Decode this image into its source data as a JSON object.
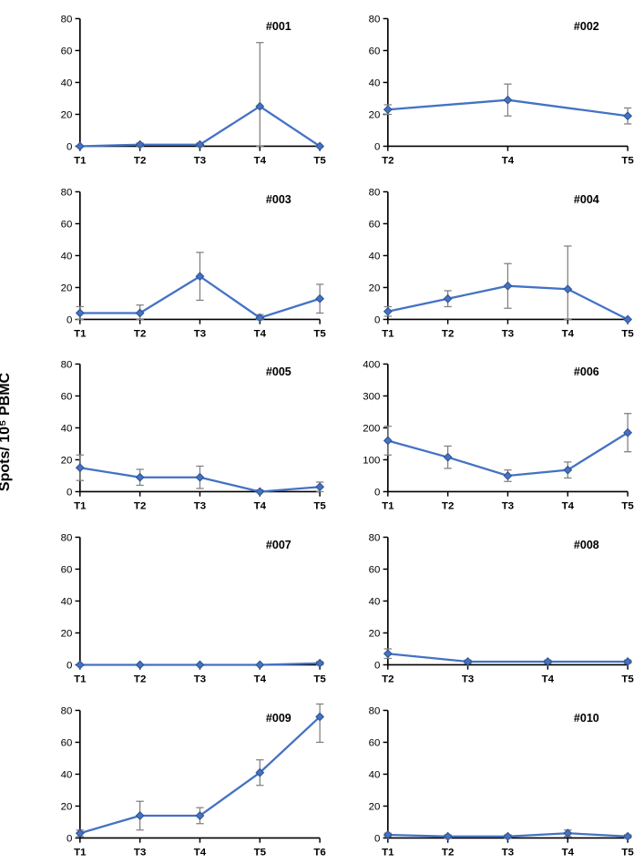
{
  "axis_label": "Spots/ 10⁵ PBMC",
  "style": {
    "background_color": "#ffffff",
    "line_color": "#4472c4",
    "marker_color": "#4472c4",
    "marker_edge": "#2f528f",
    "error_color": "#808080",
    "axis_color": "#000000",
    "line_width": 2.2,
    "marker_size": 4,
    "marker_shape": "diamond",
    "title_fontsize": 12,
    "tick_fontsize": 11,
    "tick_fontweight": "bold",
    "axis_label_fontsize": 16,
    "grid": false
  },
  "panels": [
    {
      "title": "#001",
      "categories": [
        "T1",
        "T2",
        "T3",
        "T4",
        "T5"
      ],
      "values": [
        0,
        1,
        1,
        25,
        0
      ],
      "errors": [
        0,
        1,
        1,
        40,
        0
      ],
      "ylim": [
        0,
        80
      ],
      "ytick_step": 20
    },
    {
      "title": "#002",
      "categories": [
        "T2",
        "T4",
        "T5"
      ],
      "values": [
        23,
        29,
        19
      ],
      "errors": [
        3,
        10,
        5
      ],
      "ylim": [
        0,
        80
      ],
      "ytick_step": 20
    },
    {
      "title": "#003",
      "categories": [
        "T1",
        "T2",
        "T3",
        "T4",
        "T5"
      ],
      "values": [
        4,
        4,
        27,
        1,
        13
      ],
      "errors": [
        4,
        5,
        15,
        2,
        9
      ],
      "ylim": [
        0,
        80
      ],
      "ytick_step": 20
    },
    {
      "title": "#004",
      "categories": [
        "T1",
        "T2",
        "T3",
        "T4",
        "T5"
      ],
      "values": [
        5,
        13,
        21,
        19,
        0
      ],
      "errors": [
        3,
        5,
        14,
        27,
        0
      ],
      "ylim": [
        0,
        80
      ],
      "ytick_step": 20
    },
    {
      "title": "#005",
      "categories": [
        "T1",
        "T2",
        "T3",
        "T4",
        "T5"
      ],
      "values": [
        15,
        9,
        9,
        0,
        3
      ],
      "errors": [
        8,
        5,
        7,
        1,
        3
      ],
      "ylim": [
        0,
        80
      ],
      "ytick_step": 20
    },
    {
      "title": "#006",
      "categories": [
        "T1",
        "T2",
        "T3",
        "T4",
        "T5"
      ],
      "values": [
        160,
        108,
        50,
        68,
        185
      ],
      "errors": [
        45,
        35,
        18,
        25,
        60
      ],
      "ylim": [
        0,
        400
      ],
      "ytick_step": 100
    },
    {
      "title": "#007",
      "categories": [
        "T1",
        "T2",
        "T3",
        "T4",
        "T5"
      ],
      "values": [
        0,
        0,
        0,
        0,
        1
      ],
      "errors": [
        0,
        0,
        0,
        0,
        1
      ],
      "ylim": [
        0,
        80
      ],
      "ytick_step": 20
    },
    {
      "title": "#008",
      "categories": [
        "T2",
        "T3",
        "T4",
        "T5"
      ],
      "values": [
        7,
        2,
        2,
        2
      ],
      "errors": [
        3,
        1,
        1,
        1
      ],
      "ylim": [
        0,
        80
      ],
      "ytick_step": 20
    },
    {
      "title": "#009",
      "categories": [
        "T1",
        "T3",
        "T4",
        "T5",
        "T6"
      ],
      "values": [
        3,
        14,
        14,
        41,
        76
      ],
      "errors": [
        2,
        9,
        5,
        8,
        16
      ],
      "ylim": [
        0,
        80
      ],
      "ytick_step": 20
    },
    {
      "title": "#010",
      "categories": [
        "T1",
        "T2",
        "T3",
        "T4",
        "T5"
      ],
      "values": [
        2,
        1,
        1,
        3,
        1
      ],
      "errors": [
        1,
        1,
        1,
        2,
        1
      ],
      "ylim": [
        0,
        80
      ],
      "ytick_step": 20
    }
  ]
}
